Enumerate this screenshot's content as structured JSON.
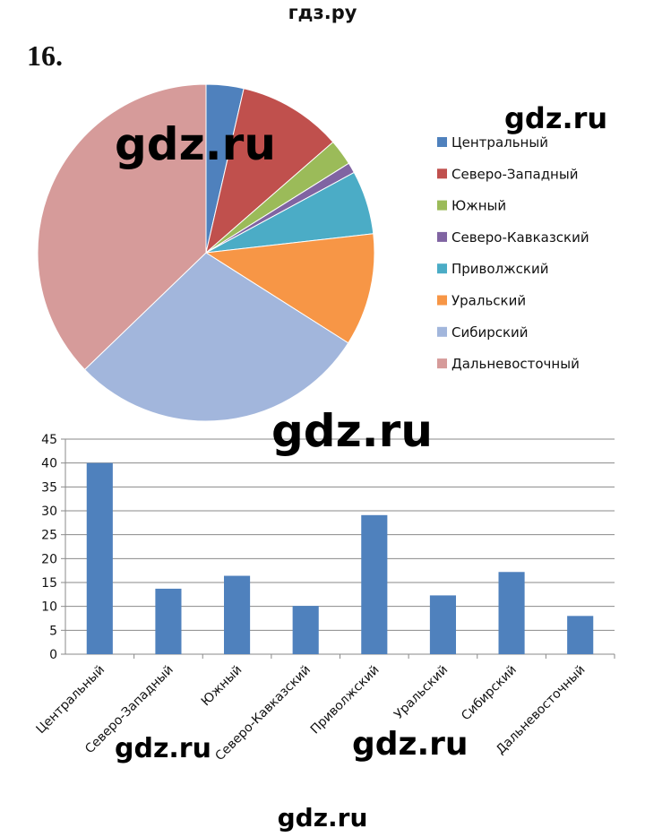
{
  "header": {
    "site": "гдз.ру"
  },
  "problem": {
    "number": "16."
  },
  "watermarks": [
    "gdz.ru",
    "gdz.ru",
    "gdz.ru",
    "gdz.ru",
    "gdz.ru",
    "gdz.ru"
  ],
  "chart_data": [
    {
      "type": "pie",
      "categories": [
        "Центральный",
        "Северо-Западный",
        "Южный",
        "Северо-Кавказский",
        "Приволжский",
        "Уральский",
        "Сибирский",
        "Дальневосточный"
      ],
      "values": [
        3.6,
        10.0,
        2.5,
        1.0,
        6.1,
        10.8,
        28.8,
        37.2
      ],
      "colors": [
        "#4F81BD",
        "#C0504D",
        "#9BBB59",
        "#8064A2",
        "#4BACC6",
        "#F79646",
        "#A2B6DC",
        "#D69B9A"
      ],
      "legend_position": "right",
      "title": ""
    },
    {
      "type": "bar",
      "categories": [
        "Центральный",
        "Северо-Западный",
        "Южный",
        "Северо-Кавказский",
        "Приволжский",
        "Уральский",
        "Сибирский",
        "Дальневосточный"
      ],
      "values": [
        40,
        13.7,
        16.4,
        10.1,
        29.1,
        12.3,
        17.2,
        8.0
      ],
      "color": "#4F81BD",
      "ylim": [
        0,
        45
      ],
      "yticks": [
        0,
        5,
        10,
        15,
        20,
        25,
        30,
        35,
        40,
        45
      ],
      "grid": true,
      "title": "",
      "xlabel": "",
      "ylabel": ""
    }
  ]
}
